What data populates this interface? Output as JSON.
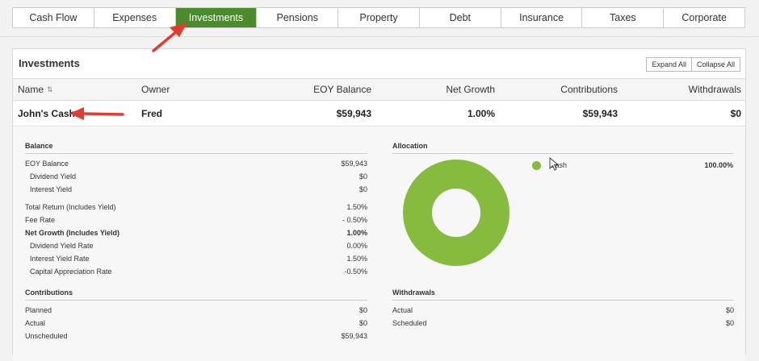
{
  "tabs": [
    {
      "label": "Cash Flow",
      "active": false
    },
    {
      "label": "Expenses",
      "active": false
    },
    {
      "label": "Investments",
      "active": true
    },
    {
      "label": "Pensions",
      "active": false
    },
    {
      "label": "Property",
      "active": false
    },
    {
      "label": "Debt",
      "active": false
    },
    {
      "label": "Insurance",
      "active": false
    },
    {
      "label": "Taxes",
      "active": false
    },
    {
      "label": "Corporate",
      "active": false
    }
  ],
  "panel": {
    "title": "Investments",
    "expand_all": "Expand All",
    "collapse_all": "Collapse All"
  },
  "table": {
    "headers": {
      "name": "Name",
      "owner": "Owner",
      "eoy_balance": "EOY Balance",
      "net_growth": "Net Growth",
      "contributions": "Contributions",
      "withdrawals": "Withdrawals"
    },
    "row": {
      "name": "John's Cash",
      "owner": "Fred",
      "eoy_balance": "$59,943",
      "net_growth": "1.00%",
      "contributions": "$59,943",
      "withdrawals": "$0"
    }
  },
  "balance": {
    "heading": "Balance",
    "rows": [
      {
        "label": "EOY Balance",
        "value": "$59,943"
      },
      {
        "label": "Dividend Yield",
        "value": "$0"
      },
      {
        "label": "Interest Yield",
        "value": "$0"
      },
      {
        "label": "Total Return (Includes Yield)",
        "value": "1.50%"
      },
      {
        "label": "Fee Rate",
        "value": "- 0.50%"
      },
      {
        "label": "Net Growth (Includes Yield)",
        "value": "1.00%"
      },
      {
        "label": "Dividend Yield Rate",
        "value": "0.00%"
      },
      {
        "label": "Interest Yield Rate",
        "value": "1.50%"
      },
      {
        "label": "Capital Appreciation Rate",
        "value": "-0.50%"
      }
    ]
  },
  "contributions": {
    "heading": "Contributions",
    "rows": [
      {
        "label": "Planned",
        "value": "$0"
      },
      {
        "label": "Actual",
        "value": "$0"
      },
      {
        "label": "Unscheduled",
        "value": "$59,943"
      }
    ]
  },
  "allocation": {
    "heading": "Allocation",
    "items": [
      {
        "label": "Cash",
        "value": "100.00%",
        "fraction": 1.0,
        "color": "#86bb3f"
      }
    ]
  },
  "withdrawals": {
    "heading": "Withdrawals",
    "rows": [
      {
        "label": "Actual",
        "value": "$0"
      },
      {
        "label": "Scheduled",
        "value": "$0"
      }
    ]
  },
  "colors": {
    "accent": "#4b8b2b",
    "allocation_green": "#86bb3f",
    "arrow_red": "#e03c31"
  }
}
